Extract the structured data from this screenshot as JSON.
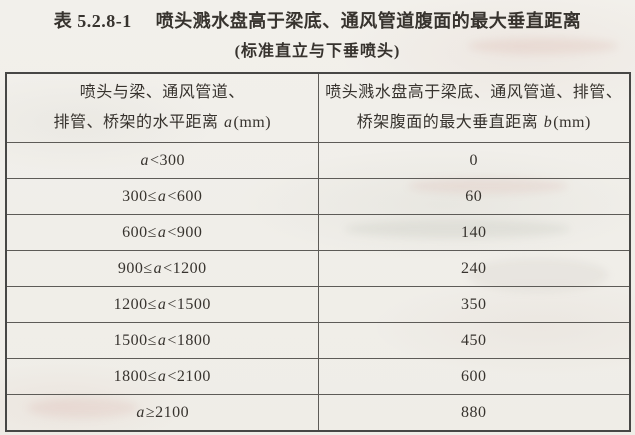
{
  "page": {
    "background_color": "#f1efea",
    "border_color": "#474745",
    "text_color": "#37332e"
  },
  "title": {
    "table_number": "表 5.2.8-1",
    "text": "喷头溅水盘高于梁底、通风管道腹面的最大垂直距离",
    "subtitle": "(标准直立与下垂喷头)"
  },
  "table": {
    "headers": [
      {
        "line1": "喷头与梁、通风管道、",
        "line2_prefix": "排管、桥架的水平距离 ",
        "variable": "a",
        "line2_suffix": "(mm)"
      },
      {
        "line1": "喷头溅水盘高于梁底、通风管道、排管、",
        "line2_prefix": "桥架腹面的最大垂直距离 ",
        "variable": "b",
        "line2_suffix": "(mm)"
      }
    ],
    "rows": [
      {
        "pre": "",
        "var": "a",
        "post": "<300",
        "value": "0"
      },
      {
        "pre": "300≤",
        "var": "a",
        "post": "<600",
        "value": "60"
      },
      {
        "pre": "600≤",
        "var": "a",
        "post": "<900",
        "value": "140"
      },
      {
        "pre": "900≤",
        "var": "a",
        "post": "<1200",
        "value": "240"
      },
      {
        "pre": "1200≤",
        "var": "a",
        "post": "<1500",
        "value": "350"
      },
      {
        "pre": "1500≤",
        "var": "a",
        "post": "<1800",
        "value": "450"
      },
      {
        "pre": "1800≤",
        "var": "a",
        "post": "<2100",
        "value": "600"
      },
      {
        "pre": "",
        "var": "a",
        "post": "≥2100",
        "value": "880"
      }
    ]
  }
}
